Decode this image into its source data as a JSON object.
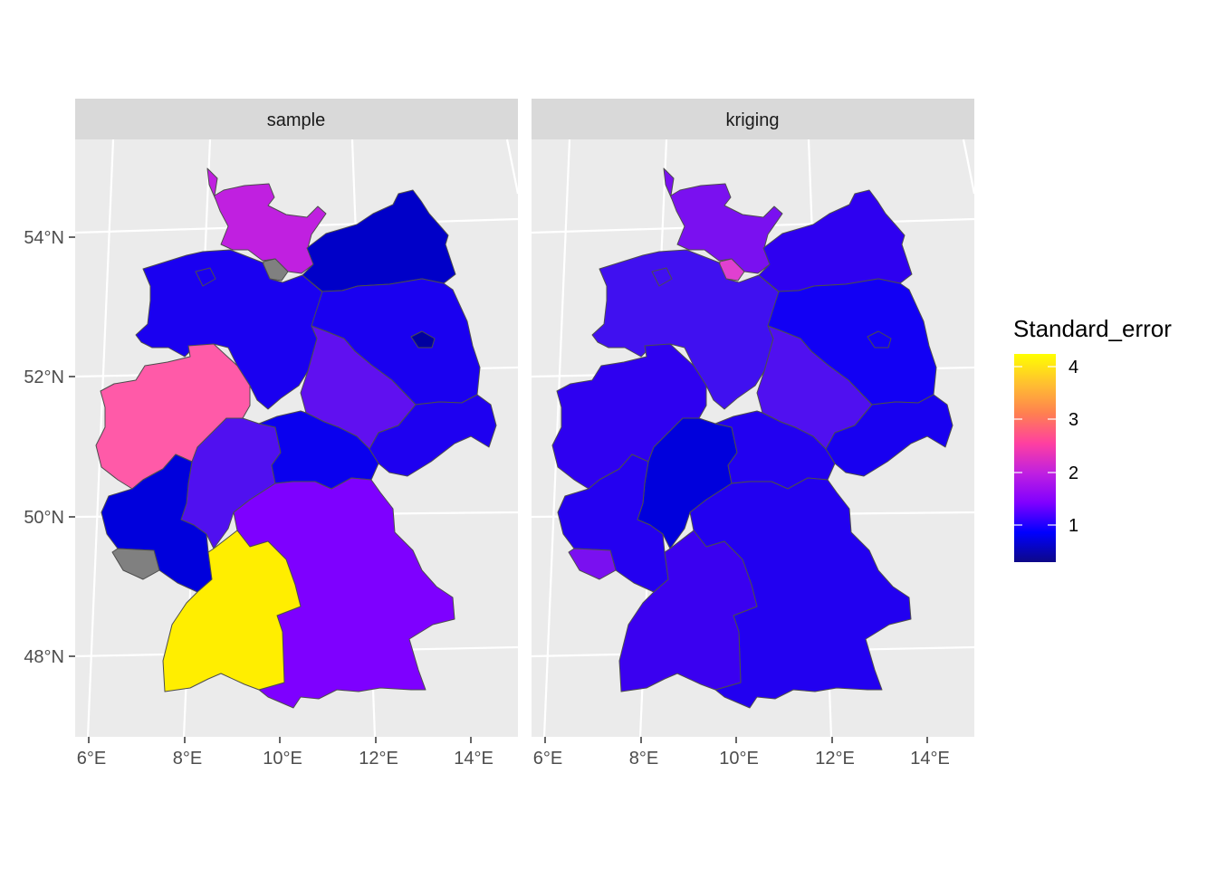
{
  "panels": [
    {
      "label": "sample"
    },
    {
      "label": "kriging"
    }
  ],
  "axes": {
    "x_ticks": [
      "6°E",
      "8°E",
      "10°E",
      "12°E",
      "14°E"
    ],
    "y_ticks": [
      "54°N",
      "52°N",
      "50°N",
      "48°N"
    ]
  },
  "legend": {
    "title": "Standard_error",
    "ticks": [
      "1",
      "2",
      "3",
      "4"
    ],
    "gradient": [
      "#0d0887",
      "#0000ff",
      "#8000ff",
      "#c020e0",
      "#ff40a0",
      "#ff8050",
      "#ffc030",
      "#ffff00"
    ]
  },
  "colors": {
    "panel_background": "#ebebeb",
    "strip_background": "#d9d9d9",
    "missing": "#808080"
  },
  "regions": {
    "sample": {
      "Schleswig-Holstein": "#c020e0",
      "Hamburg": "#808080",
      "Mecklenburg-Vorpommern": "#0000c8",
      "Niedersachsen": "#1a00f0",
      "Bremen": "#1a00f0",
      "Brandenburg": "#1a00f0",
      "Berlin": "#0000a0",
      "Sachsen-Anhalt": "#6010f0",
      "Nordrhein-Westfalen": "#ff5aa8",
      "Hessen": "#5010f0",
      "Thueringen": "#0a00ee",
      "Sachsen": "#1e00f0",
      "Rheinland-Pfalz": "#0000dc",
      "Saarland": "#808080",
      "Bayern": "#7e00ff",
      "Baden-Wuerttemberg": "#ffee00"
    },
    "kriging": {
      "Schleswig-Holstein": "#7a10f0",
      "Hamburg": "#e040d0",
      "Mecklenburg-Vorpommern": "#2e00f0",
      "Niedersachsen": "#4010f0",
      "Bremen": "#4010f0",
      "Brandenburg": "#1200f4",
      "Berlin": "#1200f4",
      "Sachsen-Anhalt": "#5010f0",
      "Nordrhein-Westfalen": "#2e00f0",
      "Hessen": "#0000dc",
      "Thueringen": "#2200f0",
      "Sachsen": "#1800f0",
      "Rheinland-Pfalz": "#2400f0",
      "Saarland": "#7a10f0",
      "Bayern": "#2200f0",
      "Baden-Wuerttemberg": "#3a00f0"
    }
  }
}
